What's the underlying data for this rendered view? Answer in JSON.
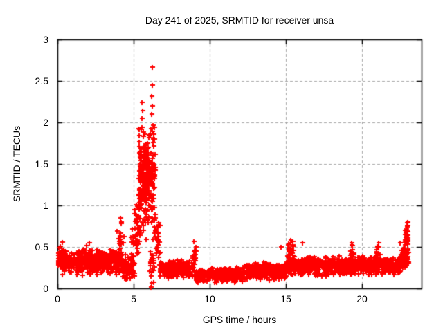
{
  "title": "Day 241 of 2025, SRMTID for receiver unsa",
  "x_axis": {
    "label": "GPS time / hours",
    "tick_values": [
      0,
      5,
      10,
      15,
      20
    ],
    "tick_labels": [
      "0",
      "5",
      "10",
      "15",
      "20"
    ]
  },
  "y_axis": {
    "label": "SRMTID / TECUs",
    "tick_values": [
      0,
      0.5,
      1,
      1.5,
      2,
      2.5,
      3
    ],
    "tick_labels": [
      "0",
      "0.5",
      "1",
      "1.5",
      "2",
      "2.5",
      "3"
    ]
  },
  "colors": {
    "marker": "#ff0000",
    "grid": "#a8a8a8",
    "axis": "#000000",
    "background": "#ffffff",
    "text": "#000000"
  },
  "chart_data": {
    "type": "scatter",
    "marker": "plus",
    "title": "Day 241 of 2025, SRMTID for receiver unsa",
    "xlabel": "GPS time / hours",
    "ylabel": "SRMTID / TECUs",
    "xlim": [
      0,
      23.91
    ],
    "ylim": [
      0,
      3
    ],
    "grid": true,
    "legend": "none",
    "peak": {
      "x": 6.23,
      "y": 2.67
    },
    "outlier_points": [
      [
        6.23,
        2.67
      ],
      [
        6.23,
        2.45
      ],
      [
        5.56,
        2.24
      ],
      [
        5.58,
        2.14
      ],
      [
        5.53,
        2.05
      ],
      [
        6.2,
        2.32
      ],
      [
        6.24,
        2.2
      ],
      [
        6.17,
        2.1
      ],
      [
        6.28,
        1.97
      ],
      [
        5.48,
        1.92
      ],
      [
        5.62,
        1.88
      ],
      [
        6.08,
        1.86
      ],
      [
        6.14,
        0.02
      ],
      [
        6.2,
        0.07
      ],
      [
        8.95,
        0.57
      ],
      [
        15.3,
        0.58
      ],
      [
        14.7,
        0.5
      ],
      [
        16.1,
        0.55
      ],
      [
        19.3,
        0.55
      ],
      [
        21.1,
        0.55
      ],
      [
        22.5,
        0.55
      ],
      [
        0.32,
        0.56
      ],
      [
        2.1,
        0.55
      ],
      [
        4.15,
        0.85
      ],
      [
        4.18,
        0.78
      ],
      [
        23.0,
        0.8
      ],
      [
        22.96,
        0.79
      ],
      [
        22.99,
        0.76
      ],
      [
        22.93,
        0.72
      ]
    ],
    "density_segments": [
      {
        "x0": 0.03,
        "x1": 0.6,
        "ymin": 0.22,
        "ymax": 0.52,
        "n": 70
      },
      {
        "x0": 0.3,
        "x1": 4.25,
        "ymin": 0.15,
        "ymax": 0.48,
        "n": 420
      },
      {
        "x0": 1.5,
        "x1": 2.3,
        "ymin": 0.3,
        "ymax": 0.55,
        "n": 25
      },
      {
        "x0": 3.9,
        "x1": 4.35,
        "ymin": 0.4,
        "ymax": 0.85,
        "n": 16
      },
      {
        "x0": 4.25,
        "x1": 5.05,
        "ymin": 0.1,
        "ymax": 0.42,
        "n": 85
      },
      {
        "x0": 4.8,
        "x1": 5.15,
        "ymin": 0.35,
        "ymax": 0.75,
        "n": 14
      },
      {
        "x0": 5.05,
        "x1": 5.4,
        "ymin": 0.3,
        "ymax": 1.15,
        "n": 40
      },
      {
        "x0": 5.3,
        "x1": 6.4,
        "ymin": 0.55,
        "ymax": 2.05,
        "n": 210
      },
      {
        "x0": 5.4,
        "x1": 6.3,
        "ymin": 1.05,
        "ymax": 1.75,
        "n": 90
      },
      {
        "x0": 6.0,
        "x1": 6.35,
        "ymin": 0.05,
        "ymax": 0.5,
        "n": 18
      },
      {
        "x0": 6.35,
        "x1": 6.75,
        "ymin": 0.2,
        "ymax": 0.95,
        "n": 30
      },
      {
        "x0": 6.7,
        "x1": 8.9,
        "ymin": 0.12,
        "ymax": 0.35,
        "n": 240
      },
      {
        "x0": 8.85,
        "x1": 9.1,
        "ymin": 0.25,
        "ymax": 0.57,
        "n": 18
      },
      {
        "x0": 9.0,
        "x1": 12.2,
        "ymin": 0.07,
        "ymax": 0.26,
        "n": 360
      },
      {
        "x0": 12.2,
        "x1": 15.0,
        "ymin": 0.1,
        "ymax": 0.32,
        "n": 310
      },
      {
        "x0": 15.15,
        "x1": 15.55,
        "ymin": 0.3,
        "ymax": 0.6,
        "n": 22
      },
      {
        "x0": 15.0,
        "x1": 19.0,
        "ymin": 0.14,
        "ymax": 0.4,
        "n": 430
      },
      {
        "x0": 19.2,
        "x1": 19.5,
        "ymin": 0.3,
        "ymax": 0.55,
        "n": 12
      },
      {
        "x0": 19.0,
        "x1": 22.55,
        "ymin": 0.15,
        "ymax": 0.4,
        "n": 380
      },
      {
        "x0": 20.85,
        "x1": 21.2,
        "ymin": 0.3,
        "ymax": 0.52,
        "n": 18
      },
      {
        "x0": 22.55,
        "x1": 23.05,
        "ymin": 0.2,
        "ymax": 0.5,
        "n": 55
      },
      {
        "x0": 22.82,
        "x1": 23.02,
        "ymin": 0.32,
        "ymax": 0.8,
        "n": 40
      }
    ]
  }
}
